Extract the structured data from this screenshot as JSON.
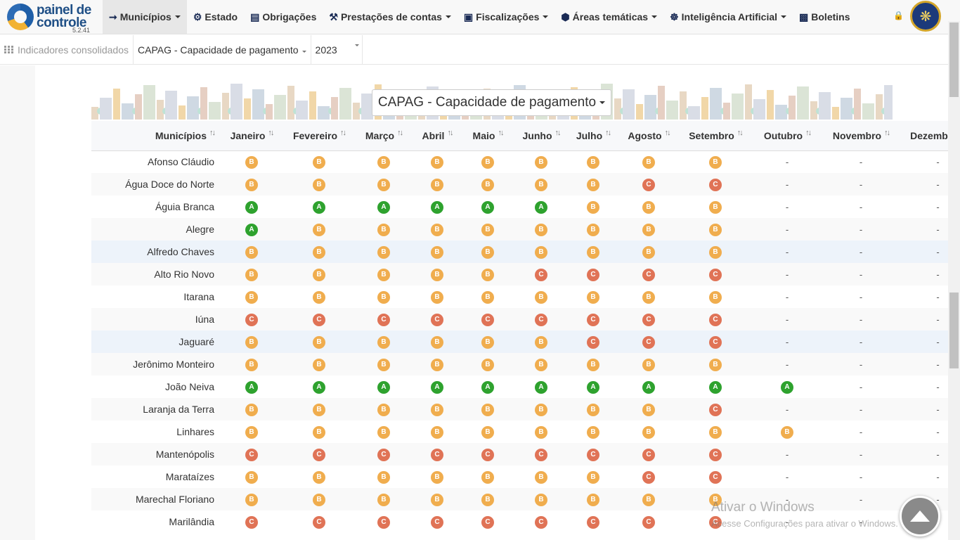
{
  "app": {
    "brand_line1": "painel de",
    "brand_line2": "controle",
    "version": "5.2.41"
  },
  "nav": [
    {
      "label": "Municípios",
      "icon": "map-icon",
      "caret": true,
      "active": true
    },
    {
      "label": "Estado",
      "icon": "gears-icon",
      "caret": false
    },
    {
      "label": "Obrigações",
      "icon": "list-icon",
      "caret": false
    },
    {
      "label": "Prestações de contas",
      "icon": "gavel-icon",
      "caret": true
    },
    {
      "label": "Fiscalizações",
      "icon": "document-icon",
      "caret": true
    },
    {
      "label": "Áreas temáticas",
      "icon": "cube-icon",
      "caret": true
    },
    {
      "label": "Inteligência Artificial",
      "icon": "brain-icon",
      "caret": true
    },
    {
      "label": "Boletins",
      "icon": "newspaper-icon",
      "caret": false
    }
  ],
  "subbar": {
    "section": "Indicadores consolidados",
    "indicator": "CAPAG - Capacidade de pagamento",
    "year": "2023"
  },
  "title_dropdown": "CAPAG - Capacidade de pagamento",
  "table": {
    "columns": [
      "Municípios",
      "Janeiro",
      "Fevereiro",
      "Março",
      "Abril",
      "Maio",
      "Junho",
      "Julho",
      "Agosto",
      "Setembro",
      "Outubro",
      "Novembro",
      "Dezembro"
    ],
    "rows": [
      {
        "name": "Afonso Cláudio",
        "values": [
          "B",
          "B",
          "B",
          "B",
          "B",
          "B",
          "B",
          "B",
          "B",
          "-",
          "-",
          "-"
        ]
      },
      {
        "name": "Água Doce do Norte",
        "values": [
          "B",
          "B",
          "B",
          "B",
          "B",
          "B",
          "B",
          "C",
          "C",
          "-",
          "-",
          "-"
        ]
      },
      {
        "name": "Águia Branca",
        "values": [
          "A",
          "A",
          "A",
          "A",
          "A",
          "A",
          "B",
          "B",
          "B",
          "-",
          "-",
          "-"
        ]
      },
      {
        "name": "Alegre",
        "values": [
          "A",
          "B",
          "B",
          "B",
          "B",
          "B",
          "B",
          "B",
          "B",
          "-",
          "-",
          "-"
        ]
      },
      {
        "name": "Alfredo Chaves",
        "values": [
          "B",
          "B",
          "B",
          "B",
          "B",
          "B",
          "B",
          "B",
          "B",
          "-",
          "-",
          "-"
        ],
        "highlight": true
      },
      {
        "name": "Alto Rio Novo",
        "values": [
          "B",
          "B",
          "B",
          "B",
          "B",
          "C",
          "C",
          "C",
          "C",
          "-",
          "-",
          "-"
        ]
      },
      {
        "name": "Itarana",
        "values": [
          "B",
          "B",
          "B",
          "B",
          "B",
          "B",
          "B",
          "B",
          "B",
          "-",
          "-",
          "-"
        ]
      },
      {
        "name": "Iúna",
        "values": [
          "C",
          "C",
          "C",
          "C",
          "C",
          "C",
          "C",
          "C",
          "C",
          "-",
          "-",
          "-"
        ]
      },
      {
        "name": "Jaguaré",
        "values": [
          "B",
          "B",
          "B",
          "B",
          "B",
          "B",
          "C",
          "C",
          "C",
          "-",
          "-",
          "-"
        ],
        "highlight": true
      },
      {
        "name": "Jerônimo Monteiro",
        "values": [
          "B",
          "B",
          "B",
          "B",
          "B",
          "B",
          "B",
          "B",
          "B",
          "-",
          "-",
          "-"
        ]
      },
      {
        "name": "João Neiva",
        "values": [
          "A",
          "A",
          "A",
          "A",
          "A",
          "A",
          "A",
          "A",
          "A",
          "A",
          "-",
          "-"
        ]
      },
      {
        "name": "Laranja da Terra",
        "values": [
          "B",
          "B",
          "B",
          "B",
          "B",
          "B",
          "B",
          "B",
          "C",
          "-",
          "-",
          "-"
        ]
      },
      {
        "name": "Linhares",
        "values": [
          "B",
          "B",
          "B",
          "B",
          "B",
          "B",
          "B",
          "B",
          "B",
          "B",
          "-",
          "-"
        ]
      },
      {
        "name": "Mantenópolis",
        "values": [
          "C",
          "C",
          "C",
          "C",
          "C",
          "C",
          "C",
          "C",
          "C",
          "-",
          "-",
          "-"
        ]
      },
      {
        "name": "Marataízes",
        "values": [
          "B",
          "B",
          "B",
          "B",
          "B",
          "B",
          "B",
          "C",
          "C",
          "-",
          "-",
          "-"
        ]
      },
      {
        "name": "Marechal Floriano",
        "values": [
          "B",
          "B",
          "B",
          "B",
          "B",
          "B",
          "B",
          "B",
          "B",
          "-",
          "-",
          "-"
        ]
      },
      {
        "name": "Marilândia",
        "values": [
          "C",
          "C",
          "C",
          "C",
          "C",
          "C",
          "C",
          "C",
          "C",
          "-",
          "-",
          "-"
        ]
      }
    ]
  },
  "grade_colors": {
    "A": "#2ea22e",
    "B": "#f0ad4e",
    "C": "#e07356"
  },
  "watermark": {
    "line1": "Ativar o Windows",
    "line2": "Acesse Configurações para ativar o Windows."
  }
}
